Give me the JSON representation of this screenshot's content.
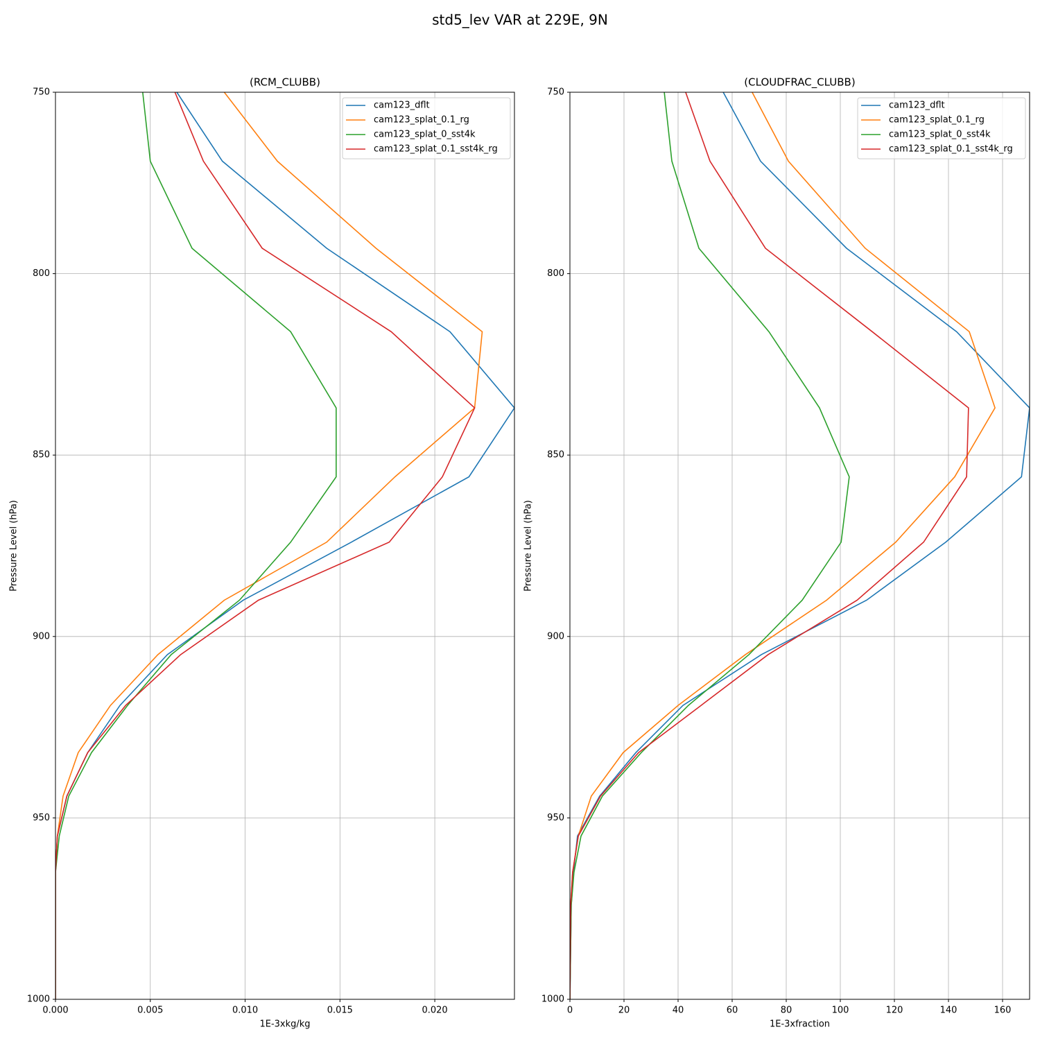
{
  "title": "std5_lev VAR at 229E, 9N",
  "chart_data": [
    {
      "type": "line",
      "title": "(RCM_CLUBB)",
      "xlabel": "1E-3xkg/kg",
      "ylabel": "Pressure Level (hPa)",
      "levels": [
        750,
        769,
        793,
        816,
        837,
        856,
        874,
        890,
        905,
        919,
        932,
        944,
        955,
        965,
        974,
        1000
      ],
      "series": [
        {
          "name": "cam123_dflt",
          "color": "#1f77b4",
          "values": [
            0.0064,
            0.0088,
            0.0143,
            0.0208,
            0.0242,
            0.0218,
            0.0156,
            0.0099,
            0.0059,
            0.0034,
            0.0017,
            0.0006,
            0.0001,
            0,
            0,
            0
          ]
        },
        {
          "name": "cam123_splat_0.1_rg",
          "color": "#ff7f0e",
          "values": [
            0.0089,
            0.0117,
            0.0169,
            0.0225,
            0.0221,
            0.0179,
            0.0143,
            0.0089,
            0.0054,
            0.0029,
            0.0012,
            0.0004,
            0.0001,
            0,
            0,
            0
          ]
        },
        {
          "name": "cam123_splat_0_sst4k",
          "color": "#2ca02c",
          "values": [
            0.0046,
            0.005,
            0.0072,
            0.0124,
            0.0148,
            0.0148,
            0.0124,
            0.0097,
            0.0061,
            0.0038,
            0.0019,
            0.0007,
            0.0002,
            0,
            0,
            0
          ]
        },
        {
          "name": "cam123_splat_0.1_sst4k_rg",
          "color": "#d62728",
          "values": [
            0.0063,
            0.0078,
            0.0109,
            0.0177,
            0.0221,
            0.0204,
            0.0176,
            0.0107,
            0.0066,
            0.0037,
            0.0017,
            0.0006,
            0.0001,
            0,
            0,
            0
          ]
        }
      ],
      "xlim": [
        0,
        0.0242
      ],
      "ylim": [
        1000,
        750
      ],
      "xticks": [
        {
          "value": 0,
          "label": "0.000"
        },
        0.005,
        {
          "value": 0.01,
          "label": "0.010"
        },
        0.015,
        {
          "value": 0.02,
          "label": "0.020"
        }
      ],
      "yticks": [
        750,
        800,
        850,
        900,
        950,
        1000
      ],
      "grid": true,
      "legend": "upper-right"
    },
    {
      "type": "line",
      "title": "(CLOUDFRAC_CLUBB)",
      "xlabel": "1E-3xfraction",
      "ylabel": "Pressure Level (hPa)",
      "levels": [
        750,
        769,
        793,
        816,
        837,
        856,
        874,
        890,
        905,
        919,
        932,
        944,
        955,
        965,
        974,
        1000
      ],
      "series": [
        {
          "name": "cam123_dflt",
          "color": "#1f77b4",
          "values": [
            56.7,
            70.5,
            102.3,
            143,
            170,
            167,
            139,
            109.7,
            70.8,
            41.8,
            24.4,
            11,
            2.8,
            1.3,
            0.5,
            0
          ]
        },
        {
          "name": "cam123_splat_0.1_rg",
          "color": "#ff7f0e",
          "values": [
            67.4,
            80.8,
            109.2,
            147.7,
            157.2,
            142.3,
            120.5,
            94.9,
            64.9,
            40,
            19.7,
            7.9,
            3.1,
            1,
            0.3,
            0
          ]
        },
        {
          "name": "cam123_splat_0_sst4k",
          "color": "#2ca02c",
          "values": [
            34.9,
            37.7,
            47.7,
            73.6,
            92.3,
            103.3,
            100.3,
            85.9,
            66.2,
            43.8,
            26.4,
            12,
            4.1,
            1.5,
            0.5,
            0
          ]
        },
        {
          "name": "cam123_splat_0.1_sst4k_rg",
          "color": "#d62728",
          "values": [
            42.8,
            51.8,
            72.3,
            111.8,
            147.4,
            146.7,
            130.8,
            106.2,
            73.3,
            48.5,
            25.4,
            11.3,
            3.1,
            1,
            0.3,
            0
          ]
        }
      ],
      "xlim": [
        0,
        170
      ],
      "ylim": [
        1000,
        750
      ],
      "xticks": [
        0,
        20,
        40,
        60,
        80,
        100,
        120,
        140,
        160
      ],
      "yticks": [
        750,
        800,
        850,
        900,
        950,
        1000
      ],
      "grid": true,
      "legend": "upper-right"
    }
  ]
}
